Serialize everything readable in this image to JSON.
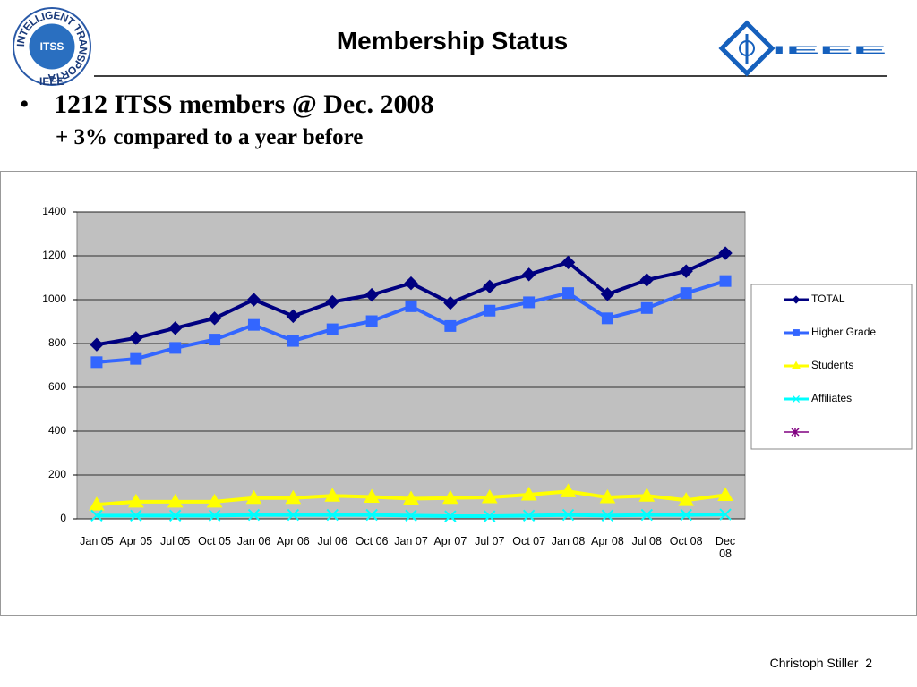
{
  "header": {
    "title": "Membership Status",
    "itss_logo": "ITSS",
    "itss_ring": "INTELLIGENT TRANSPORTATION SYSTEMS SOCIETY",
    "itss_ring_ieee": "IEEE",
    "ieee_logo": "IEEE"
  },
  "bullets": [
    "1212 ITSS members @ Dec. 2008",
    "+ 3% compared to a year before"
  ],
  "footer": {
    "author": "Christoph Stiller",
    "page": "2"
  },
  "chart_data": {
    "type": "line",
    "categories": [
      "Jan 05",
      "Apr 05",
      "Jul 05",
      "Oct 05",
      "Jan 06",
      "Apr 06",
      "Jul 06",
      "Oct 06",
      "Jan 07",
      "Apr 07",
      "Jul 07",
      "Oct 07",
      "Jan 08",
      "Apr 08",
      "Jul 08",
      "Oct 08",
      "Dec 08"
    ],
    "series": [
      {
        "name": "TOTAL",
        "color": "#000080",
        "marker": "diamond",
        "values": [
          795,
          825,
          870,
          915,
          1000,
          925,
          990,
          1022,
          1075,
          985,
          1060,
          1115,
          1170,
          1025,
          1090,
          1130,
          1212
        ]
      },
      {
        "name": "Higher Grade",
        "color": "#3366ff",
        "marker": "square",
        "values": [
          715,
          730,
          780,
          818,
          885,
          812,
          865,
          902,
          970,
          880,
          950,
          988,
          1030,
          915,
          962,
          1030,
          1085
        ]
      },
      {
        "name": "Students",
        "color": "#ffff00",
        "marker": "triangle",
        "values": [
          65,
          78,
          78,
          78,
          95,
          95,
          105,
          100,
          92,
          95,
          98,
          110,
          125,
          98,
          105,
          85,
          108
        ]
      },
      {
        "name": "Affiliates",
        "color": "#00ffff",
        "marker": "x",
        "values": [
          15,
          15,
          15,
          15,
          18,
          18,
          18,
          18,
          15,
          12,
          12,
          15,
          18,
          15,
          18,
          18,
          20
        ]
      }
    ],
    "ylim": [
      0,
      1400
    ],
    "yticks": [
      0,
      200,
      400,
      600,
      800,
      1000,
      1200,
      1400
    ],
    "grid": true,
    "legend": "right"
  }
}
